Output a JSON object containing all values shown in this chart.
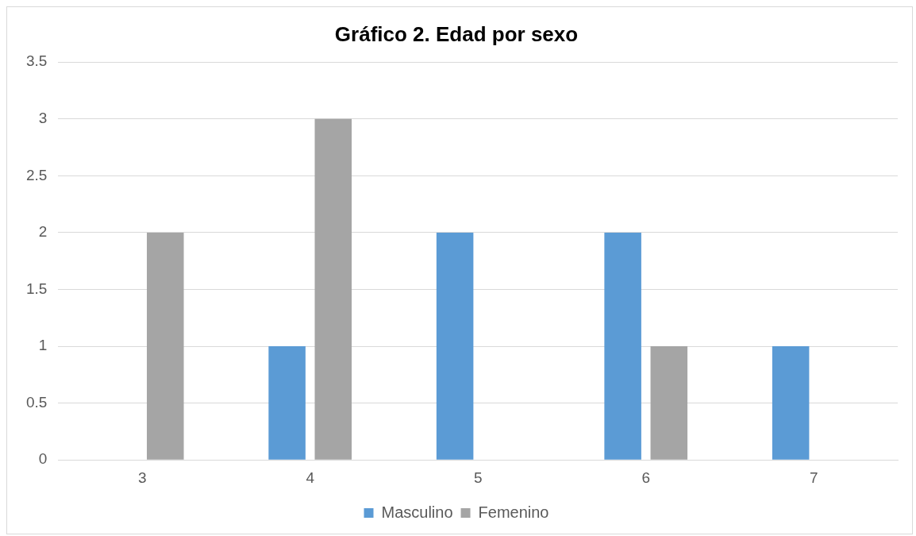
{
  "chart_data": {
    "type": "bar",
    "title": "Gráfico 2. Edad por sexo",
    "categories": [
      "3",
      "4",
      "5",
      "6",
      "7"
    ],
    "series": [
      {
        "name": "Masculino",
        "color": "#5b9bd5",
        "values": [
          0,
          1,
          2,
          2,
          1
        ]
      },
      {
        "name": "Femenino",
        "color": "#a5a5a5",
        "values": [
          2,
          3,
          0,
          1,
          0
        ]
      }
    ],
    "ylim": [
      0,
      3.5
    ],
    "yticks": [
      0,
      0.5,
      1,
      1.5,
      2,
      2.5,
      3,
      3.5
    ],
    "grid": "y",
    "legend": "bottom"
  }
}
